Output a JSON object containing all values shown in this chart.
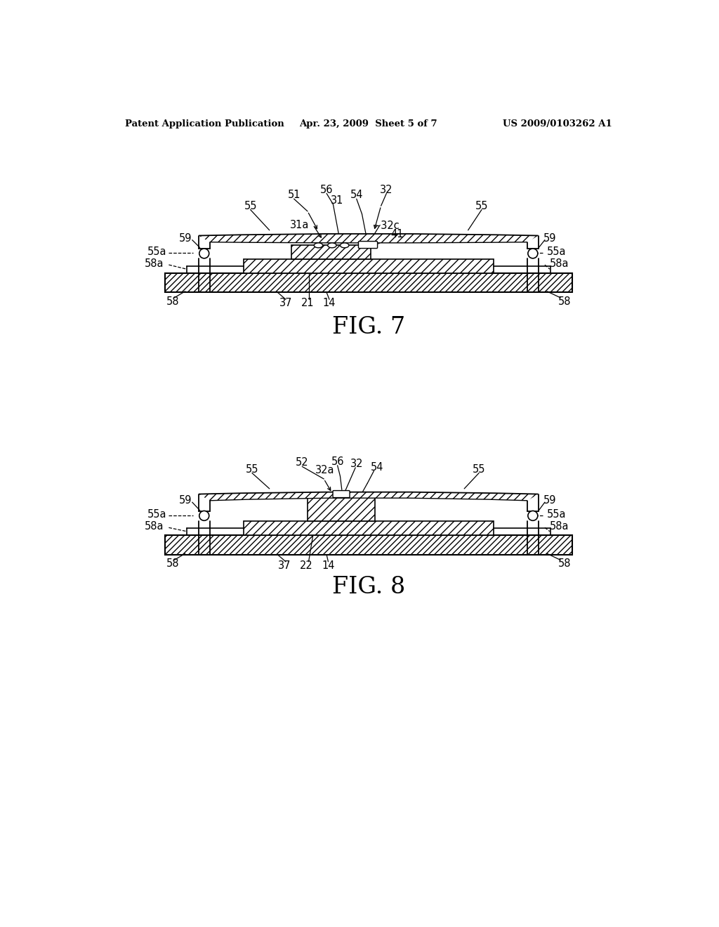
{
  "bg_color": "#ffffff",
  "header_left": "Patent Application Publication",
  "header_mid": "Apr. 23, 2009  Sheet 5 of 7",
  "header_right": "US 2009/0103262 A1",
  "fig7_label": "FIG. 7",
  "fig8_label": "FIG. 8"
}
